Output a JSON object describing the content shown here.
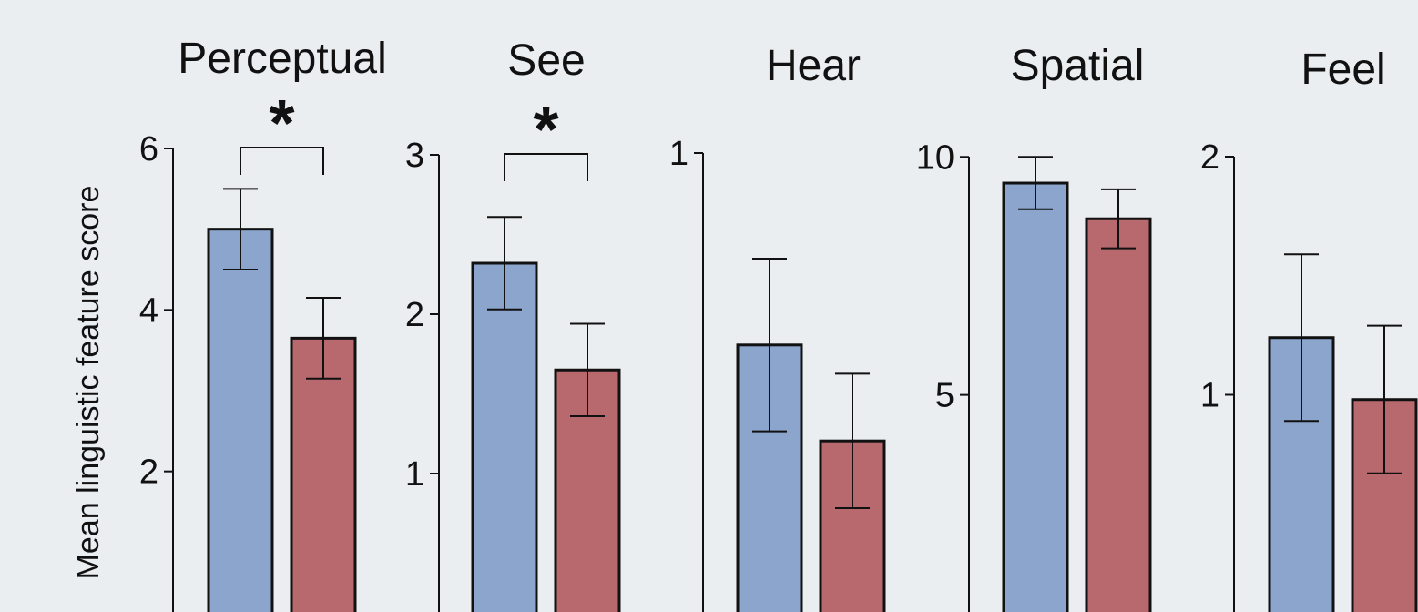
{
  "figure": {
    "ylabel": "Mean linguistic feature score",
    "colors": {
      "blue": "#8ba5cd",
      "red": "#b8696e",
      "edge": "#111111",
      "background": "#ebeef1"
    }
  },
  "chart_data": [
    {
      "type": "bar",
      "title": "Perceptual",
      "ylabel": "Mean linguistic feature score",
      "ylim": [
        0,
        6
      ],
      "yticks": [
        2,
        4,
        6
      ],
      "series": [
        {
          "values": [
            5.0
          ],
          "error": [
            0.5
          ],
          "color": "#8ba5cd"
        },
        {
          "values": [
            3.65
          ],
          "error": [
            0.5
          ],
          "color": "#b8696e"
        }
      ],
      "significance": "*"
    },
    {
      "type": "bar",
      "title": "See",
      "ylim": [
        0,
        3
      ],
      "yticks": [
        1,
        2,
        3
      ],
      "series": [
        {
          "values": [
            2.32
          ],
          "error": [
            0.29
          ],
          "color": "#8ba5cd"
        },
        {
          "values": [
            1.65
          ],
          "error": [
            0.29
          ],
          "color": "#b8696e"
        }
      ],
      "significance": "*"
    },
    {
      "type": "bar",
      "title": "Hear",
      "ylim": [
        0,
        1
      ],
      "yticks": [
        1
      ],
      "series": [
        {
          "values": [
            0.6
          ],
          "error": [
            0.18
          ],
          "color": "#8ba5cd"
        },
        {
          "values": [
            0.4
          ],
          "error": [
            0.14
          ],
          "color": "#b8696e"
        }
      ],
      "significance": ""
    },
    {
      "type": "bar",
      "title": "Spatial",
      "ylim": [
        0,
        11
      ],
      "yticks": [
        5,
        10
      ],
      "series": [
        {
          "values": [
            9.45
          ],
          "error": [
            0.55
          ],
          "color": "#8ba5cd"
        },
        {
          "values": [
            8.7
          ],
          "error": [
            0.62
          ],
          "color": "#b8696e"
        }
      ],
      "significance": ""
    },
    {
      "type": "bar",
      "title": "Feel",
      "ylim": [
        0,
        2
      ],
      "yticks": [
        1,
        2
      ],
      "series": [
        {
          "values": [
            1.24
          ],
          "error": [
            0.35
          ],
          "color": "#8ba5cd"
        },
        {
          "values": [
            0.98
          ],
          "error": [
            0.31
          ],
          "color": "#b8696e"
        }
      ],
      "significance": ""
    }
  ]
}
